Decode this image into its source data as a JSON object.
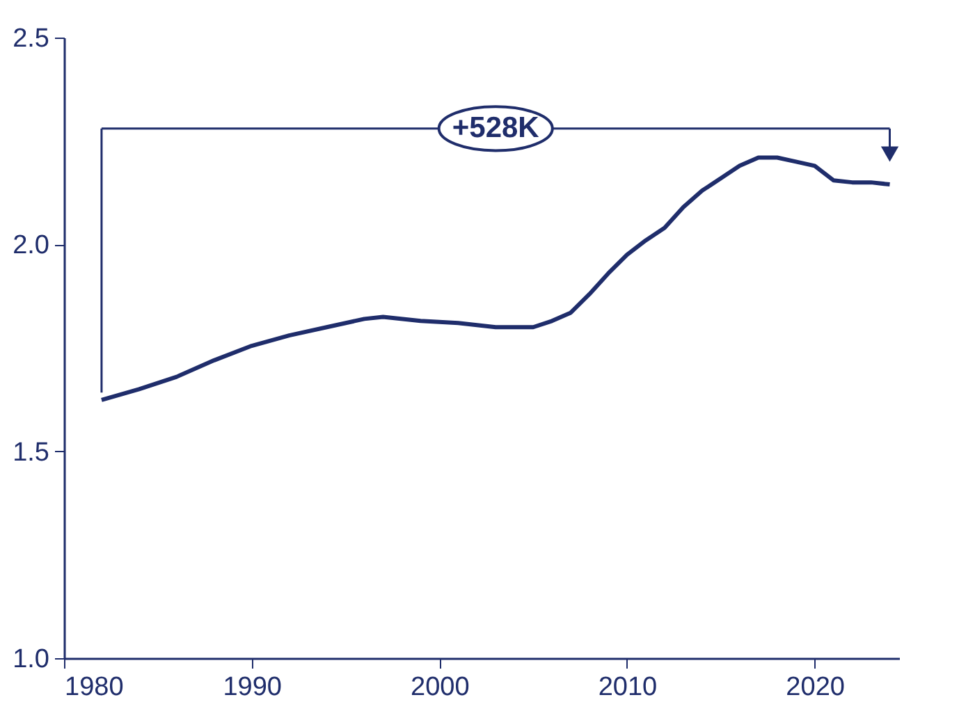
{
  "chart_data": {
    "type": "line",
    "x": [
      1982,
      1984,
      1986,
      1988,
      1990,
      1992,
      1994,
      1996,
      1997,
      1999,
      2001,
      2003,
      2005,
      2006,
      2007,
      2008,
      2009,
      2010,
      2011,
      2012,
      2013,
      2014,
      2015,
      2016,
      2017,
      2018,
      2019,
      2020,
      2021,
      2022,
      2023,
      2024
    ],
    "series": [
      {
        "color": "#1f2d6b",
        "values": [
          1.624,
          1.65,
          1.68,
          1.72,
          1.755,
          1.78,
          1.8,
          1.82,
          1.825,
          1.815,
          1.81,
          1.8,
          1.8,
          1.815,
          1.835,
          1.88,
          1.93,
          1.975,
          2.01,
          2.04,
          2.09,
          2.13,
          2.16,
          2.19,
          2.21,
          2.21,
          2.2,
          2.19,
          2.155,
          2.15,
          2.15,
          2.145
        ]
      }
    ],
    "xlim": [
      1980,
      2024.5
    ],
    "xticks": [
      1980,
      1990,
      2000,
      2010,
      2020
    ],
    "ylim": [
      1.0,
      2.5
    ],
    "yticks": [
      {
        "value": 1.0,
        "label": "1.0"
      },
      1.5,
      {
        "value": 2.0,
        "label": "2.0"
      },
      2.5
    ],
    "ref_lines": [
      {
        "axis": "y",
        "value": 2.28,
        "label": "+528K"
      }
    ],
    "grid": false,
    "marker": "none",
    "line_style": "solid"
  }
}
